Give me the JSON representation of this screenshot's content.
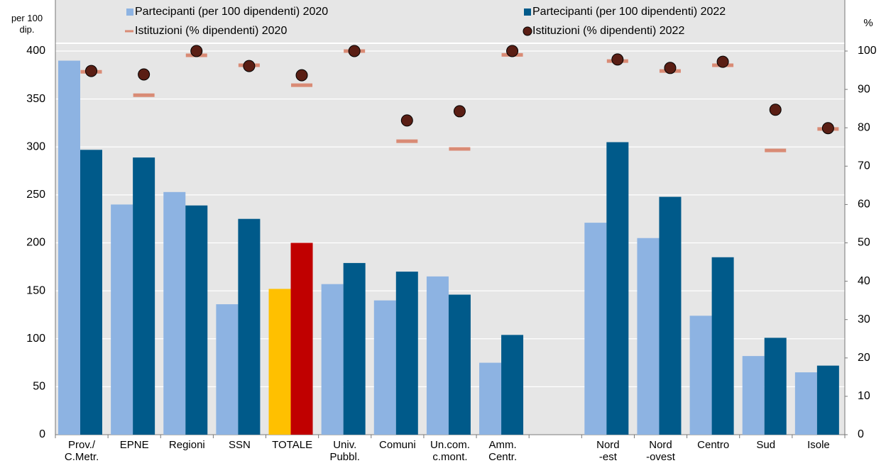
{
  "chart_data": {
    "type": "bar",
    "y_title": "per 100\ndip.",
    "y2_title": "%",
    "categories": [
      "Prov./\nC.Metr.",
      "EPNE",
      "Regioni",
      "SSN",
      "TOTALE",
      "Univ.\nPubbl.",
      "Comuni",
      "Un.com.\nc.mont.",
      "Amm.\nCentr.",
      null,
      "Nord\n-est",
      "Nord\n-ovest",
      "Centro",
      "Sud",
      "Isole"
    ],
    "series": [
      {
        "name": "Partecipanti (per 100 dipendenti) 2020",
        "kind": "bar",
        "color": "#8db3e2",
        "colors": [
          "#8db3e2",
          "#8db3e2",
          "#8db3e2",
          "#8db3e2",
          "#ffc000",
          "#8db3e2",
          "#8db3e2",
          "#8db3e2",
          "#8db3e2",
          "#8db3e2",
          "#8db3e2",
          "#8db3e2",
          "#8db3e2",
          "#8db3e2",
          "#8db3e2"
        ],
        "values": [
          390,
          240,
          253,
          136,
          152,
          157,
          140,
          165,
          75,
          null,
          221,
          205,
          124,
          82,
          65
        ]
      },
      {
        "name": "Partecipanti (per 100 dipendenti) 2022",
        "kind": "bar",
        "color": "#005a8a",
        "colors": [
          "#005a8a",
          "#005a8a",
          "#005a8a",
          "#005a8a",
          "#c00000",
          "#005a8a",
          "#005a8a",
          "#005a8a",
          "#005a8a",
          "#005a8a",
          "#005a8a",
          "#005a8a",
          "#005a8a",
          "#005a8a",
          "#005a8a"
        ],
        "values": [
          297,
          289,
          239,
          225,
          200,
          179,
          170,
          146,
          104,
          null,
          305,
          248,
          185,
          101,
          72
        ]
      },
      {
        "name": "Istituzioni (% dipendenti) 2020",
        "kind": "dash",
        "axis": "y2",
        "color": "#d98b75",
        "values": [
          94.6,
          88.5,
          98.9,
          96.3,
          91.1,
          100,
          76.5,
          74.5,
          99,
          null,
          97.4,
          94.8,
          96.3,
          74.1,
          79.7
        ]
      },
      {
        "name": "Istituzioni (% dipendenti) 2022",
        "kind": "dot",
        "axis": "y2",
        "color": "#5a1e14",
        "values": [
          94.8,
          93.9,
          100,
          96.1,
          93.7,
          100,
          81.9,
          84.3,
          100,
          null,
          97.8,
          95.6,
          97.2,
          84.7,
          79.9
        ]
      }
    ],
    "ylim": [
      0,
      400
    ],
    "yticks": [
      0,
      50,
      100,
      150,
      200,
      250,
      300,
      350,
      400
    ],
    "y2lim": [
      0,
      100
    ],
    "y2ticks": [
      0,
      10,
      20,
      30,
      40,
      50,
      60,
      70,
      80,
      90,
      100
    ],
    "grid": true
  }
}
